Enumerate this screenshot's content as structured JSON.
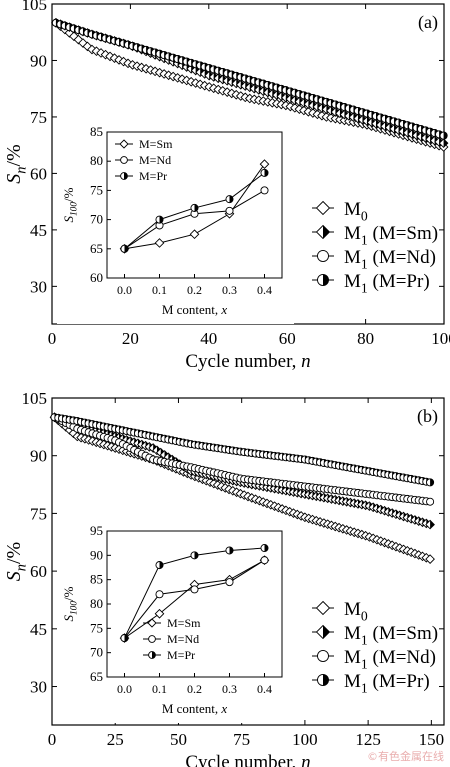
{
  "watermark": "©有色金属在线",
  "chart_data": [
    {
      "panel_label": "(a)",
      "type": "line",
      "xlabel": "Cycle number,",
      "xlabel_var": "n",
      "ylabel_main": "S",
      "ylabel_sub": "n",
      "ylabel_unit": "/%",
      "xlim": [
        0,
        100
      ],
      "ylim": [
        20,
        105
      ],
      "xticks": [
        0,
        20,
        40,
        60,
        80,
        100
      ],
      "yticks": [
        30,
        45,
        60,
        75,
        90,
        105
      ],
      "series": [
        {
          "label_main": "M",
          "label_sub": "0",
          "label_suffix": "",
          "marker": "diamond",
          "x": [
            1,
            10,
            20,
            30,
            40,
            50,
            60,
            70,
            80,
            90,
            100
          ],
          "y": [
            100,
            93,
            89,
            86,
            83,
            80,
            78,
            75,
            73,
            70,
            67
          ]
        },
        {
          "label_main": "M",
          "label_sub": "1",
          "label_suffix": " (M=Sm)",
          "marker": "half-diamond",
          "x": [
            1,
            10,
            20,
            30,
            40,
            50,
            60,
            70,
            80,
            90,
            100
          ],
          "y": [
            100,
            97,
            94,
            90,
            86,
            83,
            80,
            77,
            74,
            71,
            68
          ]
        },
        {
          "label_main": "M",
          "label_sub": "1",
          "label_suffix": " (M=Nd)",
          "marker": "circle",
          "x": [
            1,
            10,
            20,
            30,
            40,
            50,
            60,
            70,
            80,
            90,
            100
          ],
          "y": [
            100,
            97,
            94,
            91,
            88,
            85,
            82,
            79,
            76,
            73,
            70
          ]
        },
        {
          "label_main": "M",
          "label_sub": "1",
          "label_suffix": " (M=Pr)",
          "marker": "half-circle",
          "x": [
            1,
            10,
            20,
            30,
            40,
            50,
            60,
            70,
            80,
            90,
            100
          ],
          "y": [
            100,
            97,
            94,
            91,
            88,
            85,
            82,
            79,
            76,
            73,
            70
          ]
        }
      ],
      "inset": {
        "xlabel": "M content,",
        "xlabel_var": "x",
        "ylabel_main": "S",
        "ylabel_sub": "100",
        "ylabel_unit": "/%",
        "xlim": [
          -0.05,
          0.45
        ],
        "ylim": [
          60,
          85
        ],
        "xticks": [
          "0.0",
          "0.1",
          "0.2",
          "0.3",
          "0.4"
        ],
        "yticks": [
          60,
          65,
          70,
          75,
          80,
          85
        ],
        "series": [
          {
            "name": "M=Sm",
            "marker": "diamond",
            "x": [
              0,
              0.1,
              0.2,
              0.3,
              0.4
            ],
            "y": [
              65,
              66,
              67.5,
              71,
              79.5
            ]
          },
          {
            "name": "M=Nd",
            "marker": "circle",
            "x": [
              0,
              0.1,
              0.2,
              0.3,
              0.4
            ],
            "y": [
              65,
              69,
              71,
              71.5,
              75
            ]
          },
          {
            "name": "M=Pr",
            "marker": "half-circle",
            "x": [
              0,
              0.1,
              0.2,
              0.3,
              0.4
            ],
            "y": [
              65,
              70,
              72,
              73.5,
              78
            ]
          }
        ]
      }
    },
    {
      "panel_label": "(b)",
      "type": "line",
      "xlabel": "Cycle number,",
      "xlabel_var": "n",
      "ylabel_main": "S",
      "ylabel_sub": "n",
      "ylabel_unit": "/%",
      "xlim": [
        0,
        155
      ],
      "ylim": [
        20,
        105
      ],
      "xticks": [
        0,
        25,
        50,
        75,
        100,
        125,
        150
      ],
      "yticks": [
        30,
        45,
        60,
        75,
        90,
        105
      ],
      "series": [
        {
          "label_main": "M",
          "label_sub": "0",
          "label_suffix": "",
          "marker": "diamond",
          "x": [
            1,
            10,
            25,
            40,
            55,
            75,
            100,
            125,
            150
          ],
          "y": [
            100,
            95,
            92,
            89,
            85,
            80,
            74,
            69,
            63
          ]
        },
        {
          "label_main": "M",
          "label_sub": "1",
          "label_suffix": " (M=Sm)",
          "marker": "half-diamond",
          "x": [
            1,
            10,
            25,
            40,
            55,
            75,
            100,
            125,
            150
          ],
          "y": [
            100,
            98,
            95,
            92,
            86,
            83,
            80,
            77,
            72
          ]
        },
        {
          "label_main": "M",
          "label_sub": "1",
          "label_suffix": " (M=Nd)",
          "marker": "circle",
          "x": [
            1,
            10,
            25,
            40,
            55,
            75,
            100,
            125,
            150
          ],
          "y": [
            100,
            97,
            94,
            89,
            87,
            84,
            82,
            80,
            78
          ]
        },
        {
          "label_main": "M",
          "label_sub": "1",
          "label_suffix": " (M=Pr)",
          "marker": "half-circle",
          "x": [
            1,
            10,
            25,
            40,
            55,
            75,
            100,
            125,
            150
          ],
          "y": [
            100,
            99,
            97,
            95,
            93,
            91,
            89,
            86,
            83
          ]
        }
      ],
      "inset": {
        "xlabel": "M content,",
        "xlabel_var": "x",
        "ylabel_main": "S",
        "ylabel_sub": "100",
        "ylabel_unit": "/%",
        "xlim": [
          -0.05,
          0.45
        ],
        "ylim": [
          65,
          95
        ],
        "xticks": [
          "0.0",
          "0.1",
          "0.2",
          "0.3",
          "0.4"
        ],
        "yticks": [
          65,
          70,
          75,
          80,
          85,
          90,
          95
        ],
        "series": [
          {
            "name": "M=Sm",
            "marker": "diamond",
            "x": [
              0,
              0.1,
              0.2,
              0.3,
              0.4
            ],
            "y": [
              73,
              78,
              84,
              85,
              89
            ]
          },
          {
            "name": "M=Nd",
            "marker": "circle",
            "x": [
              0,
              0.1,
              0.2,
              0.3,
              0.4
            ],
            "y": [
              73,
              82,
              83,
              84.5,
              89
            ]
          },
          {
            "name": "M=Pr",
            "marker": "half-circle",
            "x": [
              0,
              0.1,
              0.2,
              0.3,
              0.4
            ],
            "y": [
              73,
              88,
              90,
              91,
              91.5
            ]
          }
        ]
      }
    }
  ]
}
